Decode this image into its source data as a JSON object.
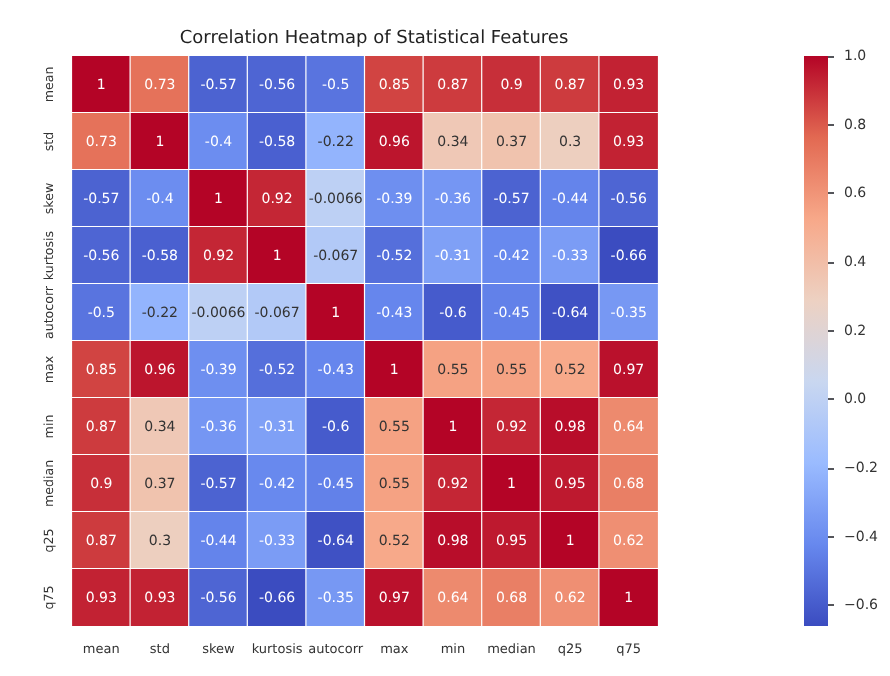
{
  "chart_data": {
    "type": "heatmap",
    "title": "Correlation Heatmap of Statistical Features",
    "categories": [
      "mean",
      "std",
      "skew",
      "kurtosis",
      "autocorr",
      "max",
      "min",
      "median",
      "q25",
      "q75"
    ],
    "y_categories": [
      "mean",
      "std",
      "skew",
      "kurtosis",
      "autocorr",
      "max",
      "min",
      "median",
      "q25",
      "q75"
    ],
    "cells": [
      [
        1,
        0.73,
        -0.57,
        -0.56,
        -0.5,
        0.85,
        0.87,
        0.9,
        0.87,
        0.93
      ],
      [
        0.73,
        1,
        -0.4,
        -0.58,
        -0.22,
        0.96,
        0.34,
        0.37,
        0.3,
        0.93
      ],
      [
        -0.57,
        -0.4,
        1,
        0.92,
        -0.0066,
        -0.39,
        -0.36,
        -0.57,
        -0.44,
        -0.56
      ],
      [
        -0.56,
        -0.58,
        0.92,
        1,
        -0.067,
        -0.52,
        -0.31,
        -0.42,
        -0.33,
        -0.66
      ],
      [
        -0.5,
        -0.22,
        -0.0066,
        -0.067,
        1,
        -0.43,
        -0.6,
        -0.45,
        -0.64,
        -0.35
      ],
      [
        0.85,
        0.96,
        -0.39,
        -0.52,
        -0.43,
        1,
        0.55,
        0.55,
        0.52,
        0.97
      ],
      [
        0.87,
        0.34,
        -0.36,
        -0.31,
        -0.6,
        0.55,
        1,
        0.92,
        0.98,
        0.64
      ],
      [
        0.9,
        0.37,
        -0.57,
        -0.42,
        -0.45,
        0.55,
        0.92,
        1,
        0.95,
        0.68
      ],
      [
        0.87,
        0.3,
        -0.44,
        -0.33,
        -0.64,
        0.52,
        0.98,
        0.95,
        1,
        0.62
      ],
      [
        0.93,
        0.93,
        -0.56,
        -0.66,
        -0.35,
        0.97,
        0.64,
        0.68,
        0.62,
        1
      ]
    ],
    "clim": [
      -0.66,
      1
    ],
    "cticks": [
      {
        "value": 1,
        "label": "1.0"
      },
      0.8,
      0.6,
      0.4,
      0.2,
      {
        "value": 0,
        "label": "0.0"
      },
      {
        "value": -0.2,
        "label": "−0.2"
      },
      {
        "value": -0.4,
        "label": "−0.4"
      },
      {
        "value": -0.6,
        "label": "−0.6"
      }
    ],
    "data_labels": true
  }
}
